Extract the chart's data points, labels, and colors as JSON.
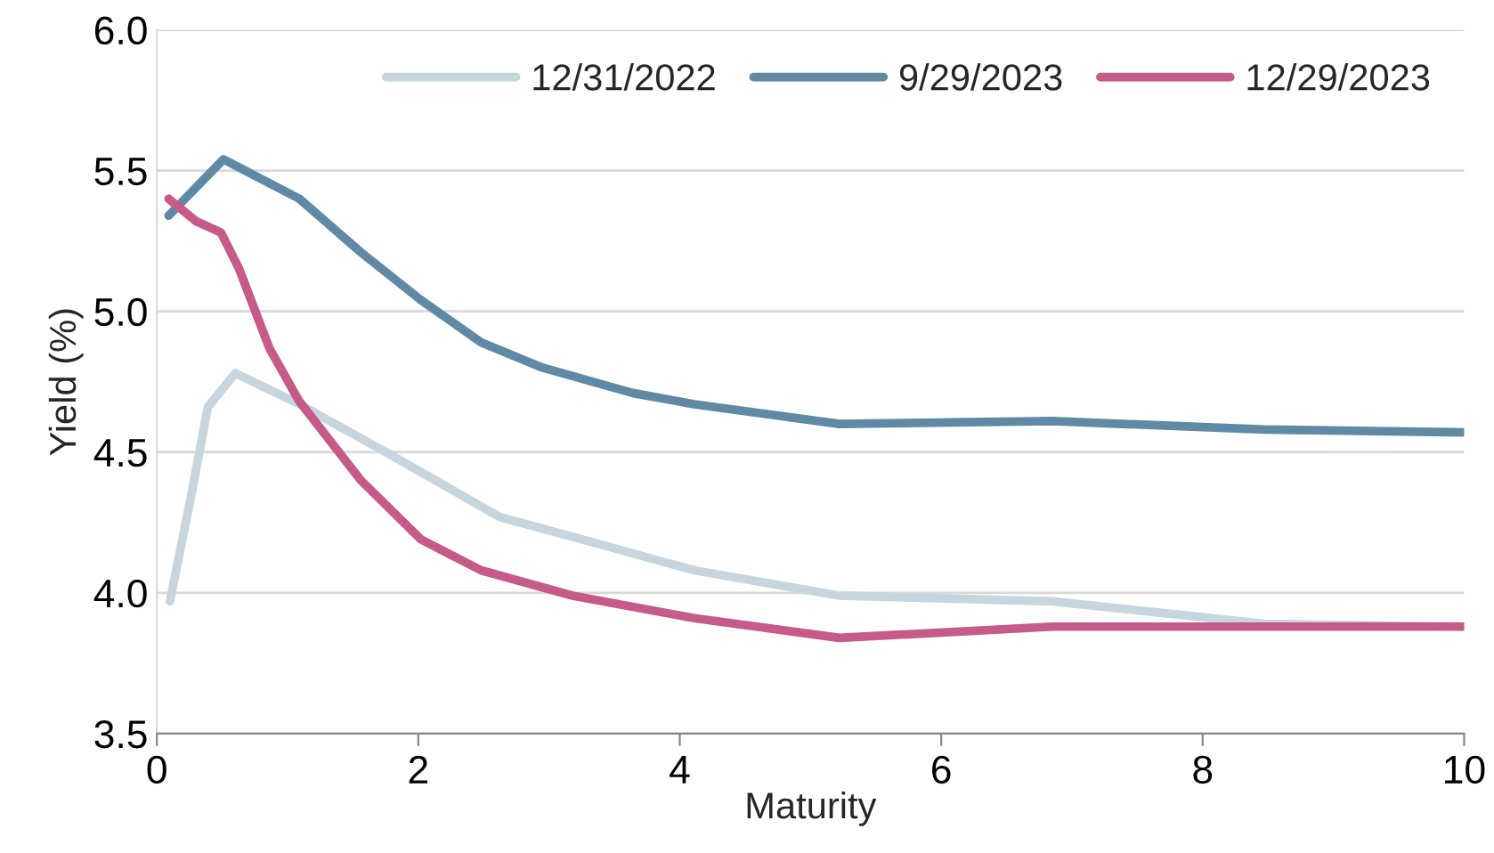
{
  "chart_data": {
    "type": "line",
    "xlabel": "Maturity",
    "ylabel": "Yield (%)",
    "xlim": [
      0,
      10
    ],
    "xticks": [
      0,
      2,
      4,
      6,
      8,
      10
    ],
    "ylim": [
      3.5,
      6.0
    ],
    "yticks": [
      {
        "value": 3.5,
        "label": "3.5"
      },
      {
        "value": 4.0,
        "label": "4.0"
      },
      {
        "value": 4.5,
        "label": "4.5"
      },
      {
        "value": 5.0,
        "label": "5.0"
      },
      {
        "value": 5.5,
        "label": "5.5"
      },
      {
        "value": 6.0,
        "label": "6.0"
      }
    ],
    "grid": "y",
    "legend": "top right",
    "marker": "none",
    "line_style": "solid",
    "series": [
      {
        "name": "12/31/2022",
        "color": "#c6d5de",
        "x": [
          0.1,
          0.26,
          0.39,
          0.6,
          1.09,
          1.79,
          2.62,
          3.41,
          4.11,
          5.22,
          6.85,
          8.47,
          10
        ],
        "values": [
          3.97,
          4.34,
          4.66,
          4.78,
          4.67,
          4.49,
          4.27,
          4.17,
          4.08,
          3.99,
          3.97,
          3.89,
          3.88
        ]
      },
      {
        "name": "9/29/2023",
        "color": "#6089a6",
        "x": [
          0.09,
          0.51,
          1.09,
          1.56,
          2.02,
          2.48,
          2.95,
          3.64,
          4.11,
          5.22,
          6.85,
          8.47,
          10
        ],
        "values": [
          5.34,
          5.54,
          5.4,
          5.21,
          5.04,
          4.89,
          4.8,
          4.71,
          4.67,
          4.6,
          4.61,
          4.58,
          4.57
        ]
      },
      {
        "name": "12/29/2023",
        "color": "#c65a89",
        "x": [
          0.09,
          0.3,
          0.49,
          0.63,
          0.86,
          1.09,
          1.56,
          2.02,
          2.48,
          3.18,
          4.11,
          5.22,
          6.85,
          10
        ],
        "values": [
          5.4,
          5.32,
          5.28,
          5.15,
          4.87,
          4.68,
          4.4,
          4.19,
          4.08,
          3.99,
          3.91,
          3.84,
          3.88,
          3.88
        ]
      }
    ]
  }
}
